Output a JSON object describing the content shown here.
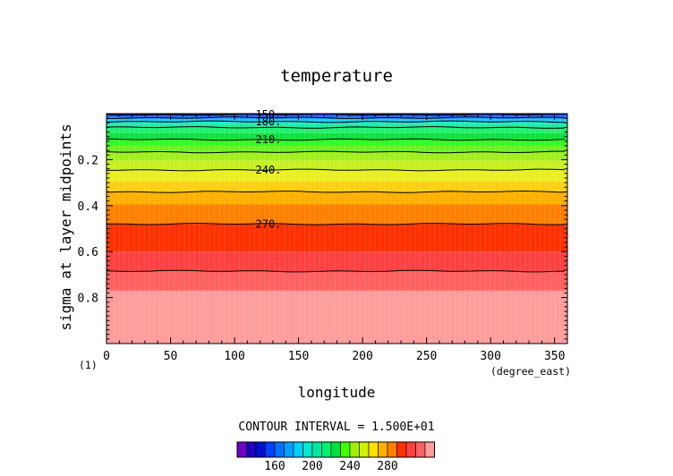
{
  "chart_data": {
    "type": "heatmap",
    "title": "temperature",
    "xlabel": "longitude",
    "xunits": "(degree_east)",
    "ylabel": "sigma at layer midpoints",
    "yunits": "(1)",
    "xlim": [
      0,
      360
    ],
    "ylim": [
      0.0,
      1.0
    ],
    "y_inverted": true,
    "xticks": [
      0,
      50,
      100,
      150,
      200,
      250,
      300,
      350
    ],
    "yticks": [
      0.2,
      0.4,
      0.6,
      0.8
    ],
    "contour_interval_text": "CONTOUR INTERVAL = 1.500E+01",
    "contour_lines": [
      {
        "value": 150,
        "label": "150.",
        "sigma": 0.004
      },
      {
        "value": 165,
        "label": "",
        "sigma": 0.018
      },
      {
        "value": 180,
        "label": "180.",
        "sigma": 0.035
      },
      {
        "value": 195,
        "label": "",
        "sigma": 0.06
      },
      {
        "value": 210,
        "label": "210.",
        "sigma": 0.113
      },
      {
        "value": 225,
        "label": "",
        "sigma": 0.167
      },
      {
        "value": 240,
        "label": "240.",
        "sigma": 0.245
      },
      {
        "value": 255,
        "label": "",
        "sigma": 0.34
      },
      {
        "value": 270,
        "label": "270.",
        "sigma": 0.48
      },
      {
        "value": 285,
        "label": "",
        "sigma": 0.685
      }
    ],
    "color_bands": [
      {
        "from": 0.0,
        "to": 0.004,
        "color": "#1010c0"
      },
      {
        "from": 0.004,
        "to": 0.01,
        "color": "#1f3fff"
      },
      {
        "from": 0.01,
        "to": 0.018,
        "color": "#2070ff"
      },
      {
        "from": 0.018,
        "to": 0.026,
        "color": "#20a0ff"
      },
      {
        "from": 0.026,
        "to": 0.035,
        "color": "#20c8f0"
      },
      {
        "from": 0.035,
        "to": 0.045,
        "color": "#20e8d0"
      },
      {
        "from": 0.045,
        "to": 0.06,
        "color": "#20e8a0"
      },
      {
        "from": 0.06,
        "to": 0.085,
        "color": "#20f070"
      },
      {
        "from": 0.085,
        "to": 0.113,
        "color": "#10e040"
      },
      {
        "from": 0.113,
        "to": 0.14,
        "color": "#30ff20"
      },
      {
        "from": 0.14,
        "to": 0.167,
        "color": "#70f020"
      },
      {
        "from": 0.167,
        "to": 0.205,
        "color": "#a0f020"
      },
      {
        "from": 0.205,
        "to": 0.245,
        "color": "#c8f020"
      },
      {
        "from": 0.245,
        "to": 0.295,
        "color": "#e8f020"
      },
      {
        "from": 0.295,
        "to": 0.34,
        "color": "#ffd010"
      },
      {
        "from": 0.34,
        "to": 0.395,
        "color": "#ffb000"
      },
      {
        "from": 0.395,
        "to": 0.48,
        "color": "#ff8000"
      },
      {
        "from": 0.48,
        "to": 0.6,
        "color": "#ff3000"
      },
      {
        "from": 0.6,
        "to": 0.685,
        "color": "#ff4040"
      },
      {
        "from": 0.685,
        "to": 0.77,
        "color": "#ff6060"
      },
      {
        "from": 0.77,
        "to": 1.0,
        "color": "#ff9c9c"
      }
    ],
    "colorbar": {
      "tick_labels": [
        "160",
        "200",
        "240",
        "280"
      ],
      "colors": [
        "#7000c0",
        "#2000c0",
        "#0010d0",
        "#0040ff",
        "#0070ff",
        "#00a0ff",
        "#00d0ff",
        "#00e8d0",
        "#00e8a0",
        "#00f070",
        "#00e040",
        "#40ff00",
        "#a0f000",
        "#d0f000",
        "#ffe000",
        "#ffb000",
        "#ff8000",
        "#ff3000",
        "#ff4040",
        "#ff6060",
        "#ff9c9c"
      ],
      "tick_after_box": [
        4,
        8,
        12,
        16
      ]
    }
  }
}
